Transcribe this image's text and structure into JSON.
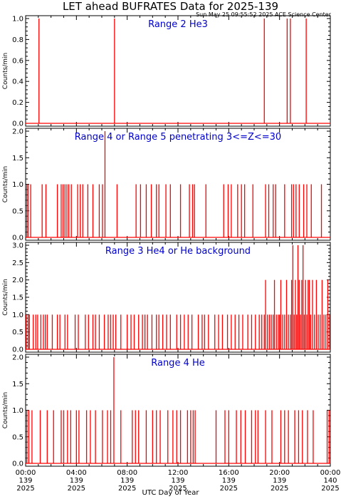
{
  "page": {
    "title": "LET ahead BUFRATES Data for 2025-139",
    "subtitle": "Sun May 25 09:55:52 2025 ACE Science Center",
    "xlabel": "UTC Day of Year"
  },
  "colors": {
    "data": "#ff0000",
    "label": "#0000cc",
    "axis": "#000000",
    "background": "#ffffff"
  },
  "chart_data": {
    "type": "line",
    "x_unit": "hours UTC, day 139 of 2025",
    "x_range": [
      0,
      24
    ],
    "x_ticks": [
      {
        "hour": 0,
        "time": "00:00",
        "doy": "139",
        "year": "2025"
      },
      {
        "hour": 4,
        "time": "04:00",
        "doy": "139",
        "year": "2025"
      },
      {
        "hour": 8,
        "time": "08:00",
        "doy": "139",
        "year": "2025"
      },
      {
        "hour": 12,
        "time": "12:00",
        "doy": "139",
        "year": "2025"
      },
      {
        "hour": 16,
        "time": "16:00",
        "doy": "139",
        "year": "2025"
      },
      {
        "hour": 20,
        "time": "20:00",
        "doy": "139",
        "year": "2025"
      },
      {
        "hour": 24,
        "time": "00:00",
        "doy": "140",
        "year": "2025"
      }
    ],
    "panels": [
      {
        "label": "Range 2 He3",
        "ylabel": "Counts/min",
        "ylim": [
          0,
          1
        ],
        "yticks": [
          "0.0",
          "0.2",
          "0.4",
          "0.6",
          "0.8",
          "1.0"
        ],
        "spikes": [
          {
            "x": 1.05,
            "y": 1
          },
          {
            "x": 7.0,
            "y": 1
          },
          {
            "x": 18.8,
            "y": 1
          },
          {
            "x": 20.6,
            "y": 1
          },
          {
            "x": 20.85,
            "y": 1
          },
          {
            "x": 22.1,
            "y": 1
          }
        ]
      },
      {
        "label": "Range 4 or Range 5 penetrating 3<=Z<=30",
        "ylabel": "Counts/min",
        "ylim": [
          0,
          2
        ],
        "yticks": [
          "0.0",
          "0.5",
          "1.0",
          "1.5",
          "2.0"
        ],
        "spikes": [
          {
            "x": 0.1,
            "y": 1
          },
          {
            "x": 0.2,
            "y": 1
          },
          {
            "x": 0.4,
            "y": 1
          },
          {
            "x": 1.3,
            "y": 1
          },
          {
            "x": 1.6,
            "y": 1
          },
          {
            "x": 2.5,
            "y": 1
          },
          {
            "x": 2.8,
            "y": 1
          },
          {
            "x": 2.95,
            "y": 1
          },
          {
            "x": 3.1,
            "y": 1
          },
          {
            "x": 3.25,
            "y": 1
          },
          {
            "x": 3.4,
            "y": 1
          },
          {
            "x": 3.6,
            "y": 1
          },
          {
            "x": 4.1,
            "y": 1
          },
          {
            "x": 4.3,
            "y": 1
          },
          {
            "x": 4.5,
            "y": 1
          },
          {
            "x": 4.9,
            "y": 1
          },
          {
            "x": 5.3,
            "y": 1
          },
          {
            "x": 5.8,
            "y": 1
          },
          {
            "x": 6.05,
            "y": 1
          },
          {
            "x": 6.25,
            "y": 2
          },
          {
            "x": 7.2,
            "y": 1
          },
          {
            "x": 8.7,
            "y": 1
          },
          {
            "x": 9.05,
            "y": 1
          },
          {
            "x": 9.5,
            "y": 1
          },
          {
            "x": 9.9,
            "y": 1
          },
          {
            "x": 10.3,
            "y": 1
          },
          {
            "x": 10.5,
            "y": 1
          },
          {
            "x": 11.05,
            "y": 1
          },
          {
            "x": 11.4,
            "y": 1
          },
          {
            "x": 12.2,
            "y": 1
          },
          {
            "x": 12.9,
            "y": 1
          },
          {
            "x": 13.15,
            "y": 1
          },
          {
            "x": 13.3,
            "y": 1
          },
          {
            "x": 14.2,
            "y": 1
          },
          {
            "x": 15.6,
            "y": 1
          },
          {
            "x": 15.95,
            "y": 1
          },
          {
            "x": 16.2,
            "y": 1
          },
          {
            "x": 16.7,
            "y": 1
          },
          {
            "x": 17.0,
            "y": 1
          },
          {
            "x": 17.25,
            "y": 1
          },
          {
            "x": 17.9,
            "y": 1
          },
          {
            "x": 18.9,
            "y": 1
          },
          {
            "x": 19.15,
            "y": 1
          },
          {
            "x": 19.5,
            "y": 1
          },
          {
            "x": 19.7,
            "y": 1
          },
          {
            "x": 20.4,
            "y": 1
          },
          {
            "x": 20.95,
            "y": 1
          },
          {
            "x": 21.1,
            "y": 1
          },
          {
            "x": 21.3,
            "y": 1
          },
          {
            "x": 21.55,
            "y": 1
          },
          {
            "x": 21.9,
            "y": 1
          },
          {
            "x": 22.15,
            "y": 1
          },
          {
            "x": 22.5,
            "y": 1
          },
          {
            "x": 23.3,
            "y": 1
          }
        ]
      },
      {
        "label": "Range 3 He4 or He background",
        "ylabel": "Counts/min",
        "ylim": [
          0,
          3
        ],
        "yticks": [
          "0.0",
          "0.5",
          "1.0",
          "1.5",
          "2.0",
          "2.5",
          "3.0"
        ],
        "spikes": [
          {
            "x": 0.05,
            "y": 1
          },
          {
            "x": 0.2,
            "y": 1
          },
          {
            "x": 0.3,
            "y": 1
          },
          {
            "x": 0.6,
            "y": 1
          },
          {
            "x": 0.8,
            "y": 1
          },
          {
            "x": 0.95,
            "y": 1
          },
          {
            "x": 1.2,
            "y": 1
          },
          {
            "x": 1.4,
            "y": 1
          },
          {
            "x": 1.55,
            "y": 1
          },
          {
            "x": 1.7,
            "y": 1
          },
          {
            "x": 2.1,
            "y": 1
          },
          {
            "x": 2.5,
            "y": 1
          },
          {
            "x": 2.7,
            "y": 1
          },
          {
            "x": 3.1,
            "y": 1
          },
          {
            "x": 3.3,
            "y": 1
          },
          {
            "x": 3.9,
            "y": 1
          },
          {
            "x": 4.15,
            "y": 1
          },
          {
            "x": 4.7,
            "y": 1
          },
          {
            "x": 4.95,
            "y": 1
          },
          {
            "x": 5.3,
            "y": 1
          },
          {
            "x": 5.5,
            "y": 1
          },
          {
            "x": 5.8,
            "y": 1
          },
          {
            "x": 6.2,
            "y": 1
          },
          {
            "x": 6.5,
            "y": 1
          },
          {
            "x": 6.7,
            "y": 1
          },
          {
            "x": 6.9,
            "y": 1
          },
          {
            "x": 7.1,
            "y": 1
          },
          {
            "x": 7.5,
            "y": 1
          },
          {
            "x": 8.0,
            "y": 1
          },
          {
            "x": 8.3,
            "y": 1
          },
          {
            "x": 8.55,
            "y": 1
          },
          {
            "x": 8.9,
            "y": 1
          },
          {
            "x": 9.2,
            "y": 1
          },
          {
            "x": 9.4,
            "y": 1
          },
          {
            "x": 9.6,
            "y": 1
          },
          {
            "x": 9.95,
            "y": 1
          },
          {
            "x": 10.3,
            "y": 1
          },
          {
            "x": 10.5,
            "y": 1
          },
          {
            "x": 10.8,
            "y": 1
          },
          {
            "x": 11.1,
            "y": 1
          },
          {
            "x": 11.4,
            "y": 1
          },
          {
            "x": 11.9,
            "y": 1
          },
          {
            "x": 12.2,
            "y": 1
          },
          {
            "x": 12.5,
            "y": 1
          },
          {
            "x": 12.8,
            "y": 1
          },
          {
            "x": 13.1,
            "y": 1
          },
          {
            "x": 13.6,
            "y": 1
          },
          {
            "x": 13.9,
            "y": 1
          },
          {
            "x": 14.1,
            "y": 1
          },
          {
            "x": 14.4,
            "y": 1
          },
          {
            "x": 14.9,
            "y": 1
          },
          {
            "x": 15.2,
            "y": 1
          },
          {
            "x": 15.5,
            "y": 1
          },
          {
            "x": 15.9,
            "y": 1
          },
          {
            "x": 16.2,
            "y": 1
          },
          {
            "x": 16.5,
            "y": 1
          },
          {
            "x": 16.8,
            "y": 1
          },
          {
            "x": 17.1,
            "y": 1
          },
          {
            "x": 17.5,
            "y": 1
          },
          {
            "x": 17.8,
            "y": 1
          },
          {
            "x": 18.1,
            "y": 1
          },
          {
            "x": 18.4,
            "y": 1
          },
          {
            "x": 18.6,
            "y": 1
          },
          {
            "x": 18.8,
            "y": 1
          },
          {
            "x": 18.9,
            "y": 2
          },
          {
            "x": 19.05,
            "y": 1
          },
          {
            "x": 19.2,
            "y": 1
          },
          {
            "x": 19.35,
            "y": 1
          },
          {
            "x": 19.5,
            "y": 1
          },
          {
            "x": 19.6,
            "y": 2
          },
          {
            "x": 19.75,
            "y": 1
          },
          {
            "x": 19.9,
            "y": 1
          },
          {
            "x": 20.0,
            "y": 1
          },
          {
            "x": 20.1,
            "y": 2
          },
          {
            "x": 20.25,
            "y": 1
          },
          {
            "x": 20.4,
            "y": 1
          },
          {
            "x": 20.55,
            "y": 2
          },
          {
            "x": 20.7,
            "y": 1
          },
          {
            "x": 20.85,
            "y": 1
          },
          {
            "x": 20.95,
            "y": 2
          },
          {
            "x": 21.05,
            "y": 3
          },
          {
            "x": 21.15,
            "y": 1
          },
          {
            "x": 21.25,
            "y": 2
          },
          {
            "x": 21.35,
            "y": 1
          },
          {
            "x": 21.45,
            "y": 3
          },
          {
            "x": 21.55,
            "y": 2
          },
          {
            "x": 21.65,
            "y": 1
          },
          {
            "x": 21.75,
            "y": 2
          },
          {
            "x": 21.85,
            "y": 3
          },
          {
            "x": 21.95,
            "y": 1
          },
          {
            "x": 22.05,
            "y": 2
          },
          {
            "x": 22.15,
            "y": 1
          },
          {
            "x": 22.25,
            "y": 2
          },
          {
            "x": 22.35,
            "y": 2
          },
          {
            "x": 22.45,
            "y": 1
          },
          {
            "x": 22.6,
            "y": 2
          },
          {
            "x": 22.75,
            "y": 1
          },
          {
            "x": 22.9,
            "y": 2
          },
          {
            "x": 23.05,
            "y": 1
          },
          {
            "x": 23.2,
            "y": 1
          },
          {
            "x": 23.35,
            "y": 2
          },
          {
            "x": 23.5,
            "y": 1
          },
          {
            "x": 23.65,
            "y": 1
          },
          {
            "x": 23.8,
            "y": 2
          },
          {
            "x": 23.95,
            "y": 1
          }
        ]
      },
      {
        "label": "Range 4 He",
        "ylabel": "Counts/min",
        "ylim": [
          0,
          2
        ],
        "yticks": [
          "0.0",
          "0.5",
          "1.0",
          "1.5",
          "2.0"
        ],
        "spikes": [
          {
            "x": 0.1,
            "y": 1
          },
          {
            "x": 0.25,
            "y": 1
          },
          {
            "x": 0.5,
            "y": 1
          },
          {
            "x": 1.15,
            "y": 1
          },
          {
            "x": 1.7,
            "y": 1
          },
          {
            "x": 2.2,
            "y": 1
          },
          {
            "x": 2.8,
            "y": 1
          },
          {
            "x": 3.0,
            "y": 1
          },
          {
            "x": 3.3,
            "y": 1
          },
          {
            "x": 3.55,
            "y": 1
          },
          {
            "x": 4.0,
            "y": 1
          },
          {
            "x": 4.2,
            "y": 1
          },
          {
            "x": 4.8,
            "y": 1
          },
          {
            "x": 5.1,
            "y": 1
          },
          {
            "x": 5.5,
            "y": 1
          },
          {
            "x": 6.05,
            "y": 1
          },
          {
            "x": 6.45,
            "y": 1
          },
          {
            "x": 6.7,
            "y": 1
          },
          {
            "x": 6.95,
            "y": 2
          },
          {
            "x": 7.5,
            "y": 1
          },
          {
            "x": 8.4,
            "y": 1
          },
          {
            "x": 8.65,
            "y": 1
          },
          {
            "x": 8.9,
            "y": 1
          },
          {
            "x": 9.5,
            "y": 1
          },
          {
            "x": 10.0,
            "y": 1
          },
          {
            "x": 10.3,
            "y": 1
          },
          {
            "x": 10.6,
            "y": 1
          },
          {
            "x": 11.2,
            "y": 1
          },
          {
            "x": 11.6,
            "y": 1
          },
          {
            "x": 11.9,
            "y": 1
          },
          {
            "x": 12.2,
            "y": 1
          },
          {
            "x": 12.75,
            "y": 1
          },
          {
            "x": 13.0,
            "y": 1
          },
          {
            "x": 13.2,
            "y": 1
          },
          {
            "x": 13.35,
            "y": 1
          },
          {
            "x": 15.0,
            "y": 1
          },
          {
            "x": 15.7,
            "y": 1
          },
          {
            "x": 16.0,
            "y": 1
          },
          {
            "x": 16.6,
            "y": 1
          },
          {
            "x": 16.95,
            "y": 1
          },
          {
            "x": 17.3,
            "y": 1
          },
          {
            "x": 17.8,
            "y": 1
          },
          {
            "x": 18.1,
            "y": 1
          },
          {
            "x": 18.3,
            "y": 1
          },
          {
            "x": 18.9,
            "y": 1
          },
          {
            "x": 19.4,
            "y": 1
          },
          {
            "x": 20.1,
            "y": 1
          },
          {
            "x": 20.4,
            "y": 1
          },
          {
            "x": 20.7,
            "y": 1
          },
          {
            "x": 21.2,
            "y": 1
          },
          {
            "x": 21.5,
            "y": 1
          },
          {
            "x": 21.8,
            "y": 1
          },
          {
            "x": 22.2,
            "y": 1
          },
          {
            "x": 22.65,
            "y": 1
          },
          {
            "x": 23.75,
            "y": 1
          },
          {
            "x": 23.9,
            "y": 1
          }
        ]
      }
    ]
  }
}
